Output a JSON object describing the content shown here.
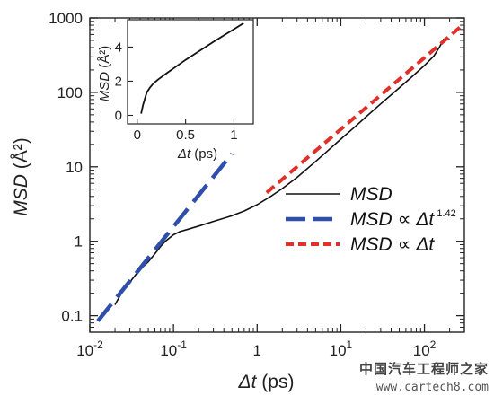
{
  "chart_data": {
    "main": {
      "type": "line",
      "xlabel": {
        "symbol": "Δt",
        "unit": " (ps)"
      },
      "ylabel": {
        "symbol": "MSD",
        "unit": " (Å²)"
      },
      "xscale": "log",
      "yscale": "log",
      "xlim": [
        0.01,
        300
      ],
      "ylim": [
        0.06,
        1000
      ],
      "x_ticks": [
        {
          "base": "10",
          "exp": "-2",
          "value": 0.01
        },
        {
          "base": "10",
          "exp": "-1",
          "value": 0.1
        },
        {
          "base": "1",
          "exp": "",
          "value": 1
        },
        {
          "base": "10",
          "exp": "1",
          "value": 10
        },
        {
          "base": "10",
          "exp": "2",
          "value": 100
        }
      ],
      "y_ticks": [
        {
          "label": "0.1",
          "value": 0.1
        },
        {
          "label": "1",
          "value": 1
        },
        {
          "label": "10",
          "value": 10
        },
        {
          "label": "100",
          "value": 100
        },
        {
          "label": "1000",
          "value": 1000
        }
      ],
      "grid": false,
      "legend_position": "center-right",
      "series": [
        {
          "name": "MSD",
          "legend": {
            "italic": "MSD",
            "rest": ""
          },
          "style": "solid",
          "color": "#111111",
          "x": [
            0.02,
            0.025,
            0.03,
            0.035,
            0.04,
            0.05,
            0.06,
            0.07,
            0.08,
            0.1,
            0.12,
            0.15,
            0.2,
            0.3,
            0.5,
            0.7,
            1,
            1.5,
            2,
            3,
            5,
            7,
            10,
            15,
            20,
            30,
            50,
            70,
            100,
            130,
            150,
            170,
            200
          ],
          "y": [
            0.14,
            0.22,
            0.28,
            0.35,
            0.42,
            0.53,
            0.68,
            0.85,
            1.0,
            1.22,
            1.35,
            1.45,
            1.6,
            1.85,
            2.2,
            2.55,
            3.1,
            4.1,
            5.1,
            7.2,
            11.8,
            16.5,
            23.5,
            35,
            47,
            70,
            115,
            160,
            230,
            310,
            400,
            520,
            520
          ]
        },
        {
          "name": "MSD ∝ Δt^1.42",
          "legend": {
            "italic": "MSD",
            "rest": " ∝ Δt",
            "sup": "1.42"
          },
          "style": "long-dash",
          "color": "#2f4fa8",
          "x": [
            0.0125,
            0.5
          ],
          "y": [
            0.085,
            15
          ]
        },
        {
          "name": "MSD ∝ Δt",
          "legend": {
            "italic": "MSD",
            "rest": " ∝ Δt"
          },
          "style": "short-dash",
          "color": "#e0302a",
          "x": [
            1.3,
            270
          ],
          "y": [
            4.5,
            760
          ]
        }
      ]
    },
    "inset": {
      "type": "line",
      "xlabel": {
        "symbol": "Δt",
        "unit": " (ps)"
      },
      "ylabel": {
        "symbol": "MSD",
        "unit": " (Å²)"
      },
      "xlim": [
        -0.1,
        1.2
      ],
      "ylim": [
        -0.5,
        5.6
      ],
      "x_ticks": [
        {
          "label": "0",
          "value": 0
        },
        {
          "label": "0.5",
          "value": 0.5
        },
        {
          "label": "1",
          "value": 1
        }
      ],
      "y_ticks": [
        {
          "label": "0",
          "value": 0
        },
        {
          "label": "2",
          "value": 2
        },
        {
          "label": "4",
          "value": 4
        }
      ],
      "series": [
        {
          "name": "MSD",
          "color": "#111111",
          "x": [
            0.04,
            0.06,
            0.08,
            0.1,
            0.13,
            0.17,
            0.22,
            0.3,
            0.4,
            0.5,
            0.6,
            0.7,
            0.8,
            0.9,
            1.0,
            1.1
          ],
          "y": [
            0.1,
            0.6,
            1.0,
            1.35,
            1.62,
            1.88,
            2.12,
            2.45,
            2.85,
            3.25,
            3.62,
            3.98,
            4.35,
            4.7,
            5.05,
            5.4
          ]
        }
      ]
    }
  },
  "watermark": {
    "name": "中国汽车工程师之家",
    "url": "www.cartech8.com"
  }
}
